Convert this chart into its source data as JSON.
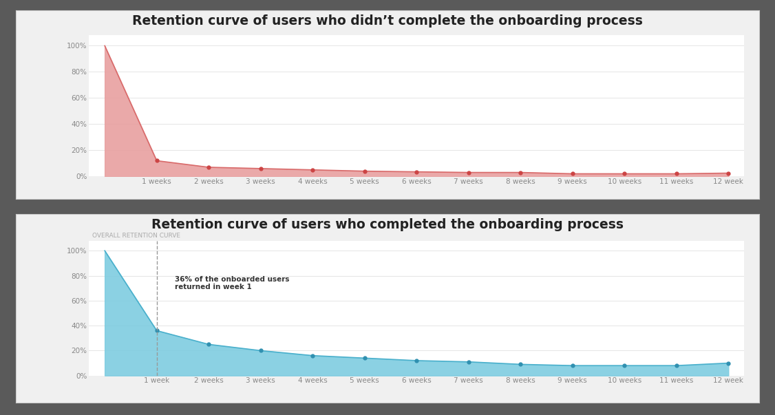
{
  "background_color": "#5a5a5a",
  "panel_bg": "#f0f0f0",
  "chart_bg": "#ffffff",
  "title1": "Retention curve of users who didn’t complete the onboarding process",
  "title2": "Retention curve of users who completed the onboarding process",
  "title_color": "#ffffff",
  "title_fontsize": 13.5,
  "x_labels_top": [
    "",
    "1 weeks",
    "2 weeks",
    "3 weeks",
    "4 weeks",
    "5 weeks",
    "6 weeks",
    "7 weeks",
    "8 weeks",
    "9 weeks",
    "10 weeks",
    "11 weeks",
    "12 week"
  ],
  "x_labels_bot": [
    "",
    "1 week",
    "2 weeks",
    "3 weeks",
    "4 weeks",
    "5 weeks",
    "6 weeks",
    "7 weeks",
    "8 weeks",
    "9 weeks",
    "10 weeks",
    "11 weeks",
    "12 week"
  ],
  "red_values": [
    100,
    12,
    7,
    6,
    5,
    4,
    3.5,
    3,
    3,
    2,
    2,
    2,
    2.5
  ],
  "red_color": "#d96b6b",
  "red_fill": "#e8a0a0",
  "red_marker": "#cc4444",
  "blue_values": [
    100,
    36,
    25,
    20,
    16,
    14,
    12,
    11,
    9,
    8,
    8,
    8,
    10
  ],
  "blue_color": "#4ab0cc",
  "blue_fill": "#7ecce0",
  "blue_marker": "#3090b0",
  "inner_label": "OVERALL RETENTION CURVE",
  "annotation_text": "36% of the onboarded users\nreturned in week 1",
  "yticks": [
    0,
    20,
    40,
    60,
    80,
    100
  ],
  "ytick_labels": [
    "0%",
    "20%",
    "40%",
    "60%",
    "80%",
    "100%"
  ],
  "grid_color": "#e0e0e0",
  "tick_color": "#888888",
  "label_fontsize": 7.5
}
